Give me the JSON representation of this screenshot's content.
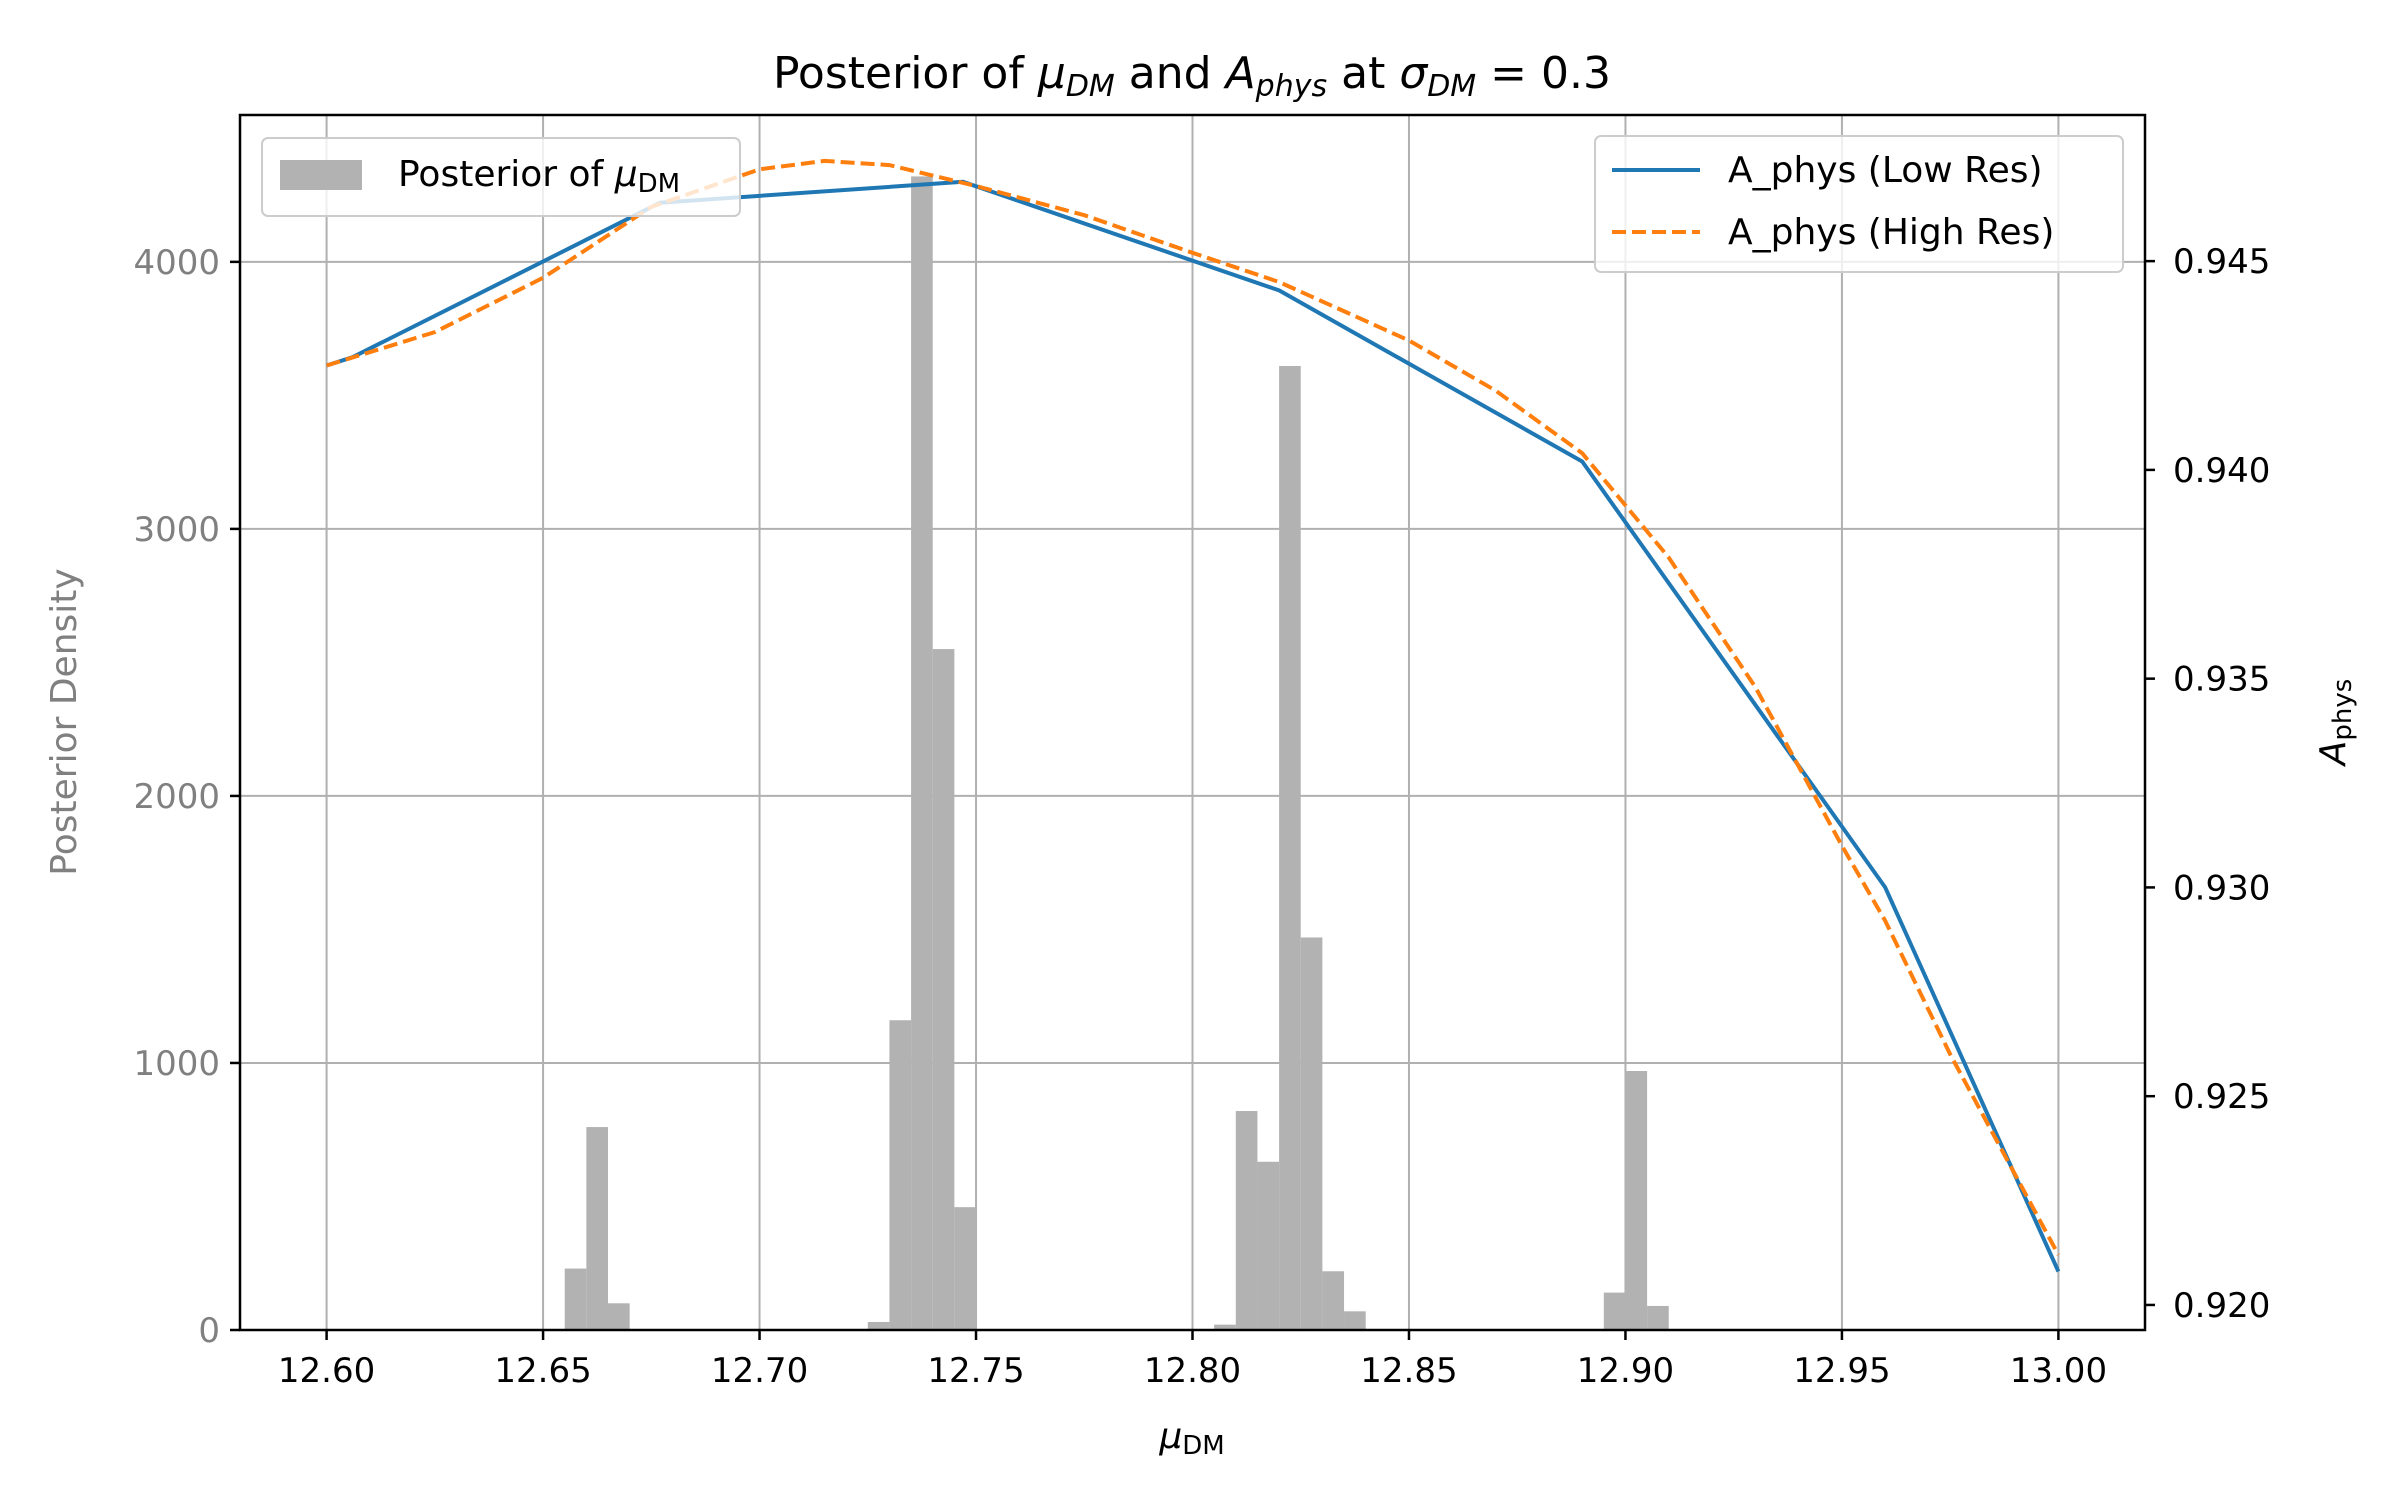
{
  "chart_data": {
    "type": "histogram+line",
    "title": {
      "prefix": "Posterior of ",
      "mu": "μ",
      "mu_sub": "DM",
      "and": " and ",
      "a": "A",
      "a_sub": "phys",
      "at": " at ",
      "sigma": "σ",
      "sigma_sub": "DM",
      "equals": " = 0.3"
    },
    "xlabel": {
      "base": "μ",
      "sub": "DM"
    },
    "ylabel_left": "Posterior Density",
    "ylabel_right": {
      "base": "A",
      "sub": "phys"
    },
    "xlim": [
      12.58,
      13.02
    ],
    "ylim_left": [
      0,
      4550
    ],
    "ylim_right": [
      0.9194,
      0.9485
    ],
    "xticks": [
      "12.60",
      "12.65",
      "12.70",
      "12.75",
      "12.80",
      "12.85",
      "12.90",
      "12.95",
      "13.00"
    ],
    "xtick_values": [
      12.6,
      12.65,
      12.7,
      12.75,
      12.8,
      12.85,
      12.9,
      12.95,
      13.0
    ],
    "yticks_left": [
      "0",
      "1000",
      "2000",
      "3000",
      "4000"
    ],
    "ytick_values_left": [
      0,
      1000,
      2000,
      3000,
      4000
    ],
    "yticks_right": [
      "0.920",
      "0.925",
      "0.930",
      "0.935",
      "0.940",
      "0.945"
    ],
    "ytick_values_right": [
      0.92,
      0.925,
      0.93,
      0.935,
      0.94,
      0.945
    ],
    "grid": true,
    "histogram": {
      "legend_label": {
        "base": "Posterior of ",
        "mu": "μ",
        "sub": "DM"
      },
      "color": "#b2b2b2",
      "bin_width": 0.005,
      "bins": [
        [
          12.6575,
          230
        ],
        [
          12.6625,
          760
        ],
        [
          12.6675,
          100
        ],
        [
          12.7275,
          30
        ],
        [
          12.7325,
          1160
        ],
        [
          12.7375,
          4320
        ],
        [
          12.7425,
          2550
        ],
        [
          12.7475,
          460
        ],
        [
          12.8075,
          20
        ],
        [
          12.8125,
          820
        ],
        [
          12.8175,
          630
        ],
        [
          12.8225,
          3610
        ],
        [
          12.8275,
          1470
        ],
        [
          12.8325,
          220
        ],
        [
          12.8375,
          70
        ],
        [
          12.8975,
          140
        ],
        [
          12.9025,
          970
        ],
        [
          12.9075,
          90
        ]
      ]
    },
    "series": [
      {
        "name": "A_phys (Low Res)",
        "color": "#1f77b4",
        "dash": "solid",
        "x": [
          12.6,
          12.606,
          12.677,
          12.747,
          12.82,
          12.89,
          12.96,
          13.0
        ],
        "y": [
          0.9425,
          0.9427,
          0.9464,
          0.9469,
          0.9443,
          0.9402,
          0.93,
          0.9208
        ]
      },
      {
        "name": "A_phys (High Res)",
        "color": "#ff7f0e",
        "dash": "dashed",
        "x": [
          12.6,
          12.625,
          12.65,
          12.675,
          12.7,
          12.715,
          12.73,
          12.75,
          12.775,
          12.8,
          12.82,
          12.85,
          12.87,
          12.89,
          12.91,
          12.93,
          12.95,
          12.96,
          12.975,
          13.0
        ],
        "y": [
          0.9425,
          0.9433,
          0.9446,
          0.9463,
          0.9472,
          0.9474,
          0.9473,
          0.9468,
          0.9461,
          0.9452,
          0.9445,
          0.9431,
          0.9419,
          0.9404,
          0.9379,
          0.9348,
          0.931,
          0.9292,
          0.926,
          0.9212
        ]
      }
    ],
    "legend_right_placement": "top-right",
    "legend_left_placement": "top-left"
  }
}
